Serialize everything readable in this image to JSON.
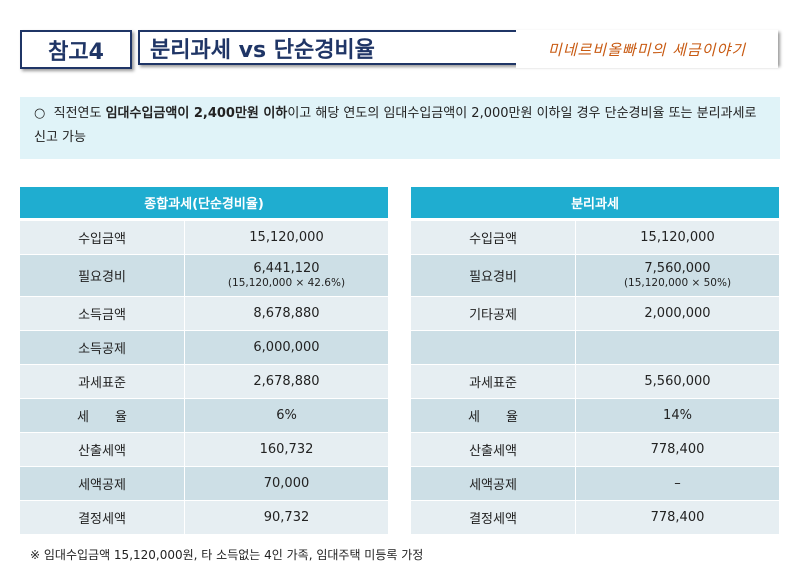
{
  "header": {
    "badge": "참고4",
    "title": "분리과세 vs 단순경비율",
    "brand": "미네르비올빠미의 세금이야기"
  },
  "note": {
    "bullet": "○",
    "pre": "직전연도 ",
    "bold": "임대수입금액이 2,400만원 이하",
    "post": "이고 해당 연도의 임대수입금액이 2,000만원 이하일 경우 단순경비율 또는 분리과세로 신고 가능"
  },
  "left_table": {
    "title": "종합과세(단순경비율)",
    "rows": [
      {
        "label": "수입금액",
        "value": "15,120,000"
      },
      {
        "label": "필요경비",
        "value": "6,441,120",
        "sub": "(15,120,000 × 42.6%)"
      },
      {
        "label": "소득금액",
        "value": "8,678,880"
      },
      {
        "label": "소득공제",
        "value": "6,000,000"
      },
      {
        "label": "과세표준",
        "value": "2,678,880"
      },
      {
        "label": "세　　율",
        "value": "6%"
      },
      {
        "label": "산출세액",
        "value": "160,732"
      },
      {
        "label": "세액공제",
        "value": "70,000"
      },
      {
        "label": "결정세액",
        "value": "90,732"
      }
    ]
  },
  "right_table": {
    "title": "분리과세",
    "rows": [
      {
        "label": "수입금액",
        "value": "15,120,000"
      },
      {
        "label": "필요경비",
        "value": "7,560,000",
        "sub": "(15,120,000 × 50%)"
      },
      {
        "label": "기타공제",
        "value": "2,000,000"
      },
      {
        "label": "",
        "value": ""
      },
      {
        "label": "과세표준",
        "value": "5,560,000"
      },
      {
        "label": "세　　율",
        "value": "14%"
      },
      {
        "label": "산출세액",
        "value": "778,400"
      },
      {
        "label": "세액공제",
        "value": "–"
      },
      {
        "label": "결정세액",
        "value": "778,400"
      }
    ]
  },
  "footnote": "※ 임대수입금액 15,120,000원,  타 소득없는 4인 가족, 임대주택 미등록 가정"
}
